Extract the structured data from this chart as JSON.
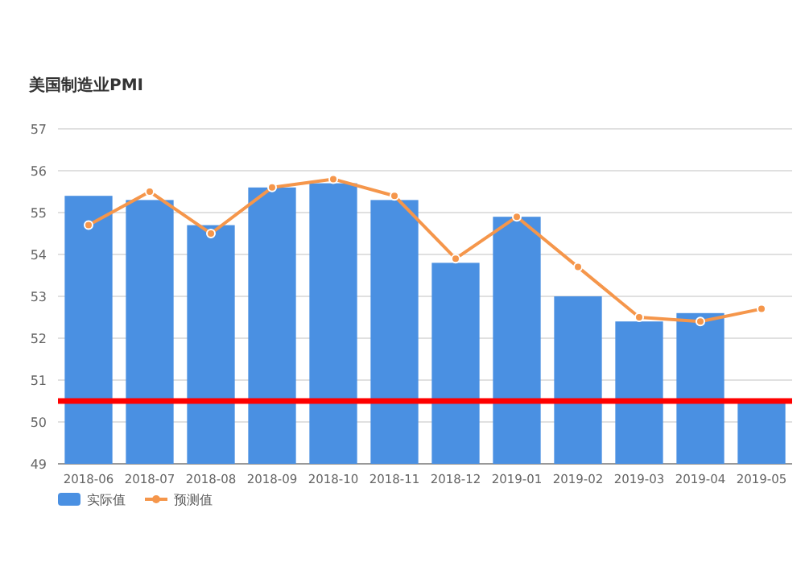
{
  "chart_data": {
    "type": "bar",
    "title": "美国制造业PMI",
    "categories": [
      "2018-06",
      "2018-07",
      "2018-08",
      "2018-09",
      "2018-10",
      "2018-11",
      "2018-12",
      "2019-01",
      "2019-02",
      "2019-03",
      "2019-04",
      "2019-05"
    ],
    "series": [
      {
        "name": "实际值",
        "color": "#4a90e2",
        "values": [
          55.4,
          55.3,
          54.7,
          55.6,
          55.7,
          55.3,
          53.8,
          54.9,
          53.0,
          52.4,
          52.6,
          50.5
        ]
      },
      {
        "name": "预测值",
        "type": "line",
        "color": "#f5964b",
        "marker": "circle",
        "values": [
          54.7,
          55.5,
          54.5,
          55.6,
          55.8,
          55.4,
          53.9,
          54.9,
          53.7,
          52.5,
          52.4,
          52.7
        ]
      }
    ],
    "ylim": [
      49,
      57
    ],
    "yticks": [
      49,
      50,
      51,
      52,
      53,
      54,
      55,
      56,
      57
    ],
    "grid": "y",
    "legend": "bottom left",
    "ref_lines": [
      {
        "axis": "y",
        "value": 50.5,
        "color": "#ff0000"
      }
    ]
  }
}
